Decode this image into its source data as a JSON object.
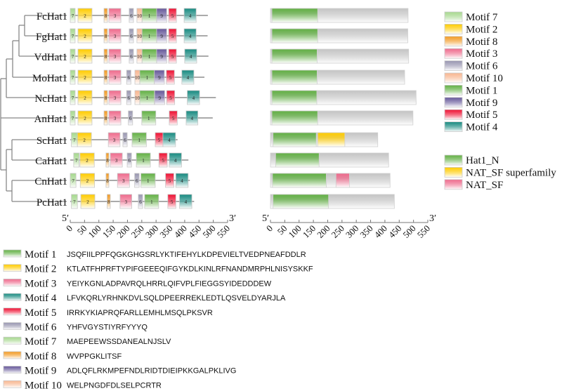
{
  "motifs": [
    {
      "id": "1",
      "label": "Motif 1",
      "color": "#62b044",
      "sequence": "JSQFIILPPFQGKGHGSRLYKTIFEHYLKDPEVIELTVEDPNEAFDDLR"
    },
    {
      "id": "2",
      "label": "Motif 2",
      "color": "#ffcc00",
      "sequence": "KTLATFHPRFTYPIFGEEEQIFGYKDLKINLRFNANDMRPHLNISYSKKF"
    },
    {
      "id": "3",
      "label": "Motif 3",
      "color": "#ee6a8c",
      "sequence": "YEIYKGNLADPAVRQLHRRLQIFVPLFIEGGSYIDEDDDEW"
    },
    {
      "id": "4",
      "label": "Motif 4",
      "color": "#178a80",
      "sequence": "LFVKQRLYRHNKDVLSQLDPEERREKLEDTLQSVELDYARJLA"
    },
    {
      "id": "5",
      "label": "Motif 5",
      "color": "#ee1133",
      "sequence": "IRRKYKIAPRQFARLLEMHLMSQLPKSVR"
    },
    {
      "id": "6",
      "label": "Motif 6",
      "color": "#9896b0",
      "sequence": "YHFVGYSTIYRFYYYQ"
    },
    {
      "id": "7",
      "label": "Motif 7",
      "color": "#a6d88e",
      "sequence": "MAEPEEWSSDANEALNJSLV"
    },
    {
      "id": "8",
      "label": "Motif 8",
      "color": "#f29a22",
      "sequence": "WVPPGKLITSF"
    },
    {
      "id": "9",
      "label": "Motif 9",
      "color": "#66589a",
      "sequence": "ADLQFLRKMPEFNDLRIDTDIEIPKKGALPKLIVG"
    },
    {
      "id": "10",
      "label": "Motif 10",
      "color": "#f8b690",
      "sequence": "WELPNGDFDLSELPCRTR"
    }
  ],
  "motif_legend_order": [
    "7",
    "2",
    "8",
    "3",
    "6",
    "10",
    "1",
    "9",
    "5",
    "4"
  ],
  "domains": [
    {
      "name": "Hat1_N",
      "color": "#62b044"
    },
    {
      "name": "NAT_SF superfamily",
      "color": "#ffcc00"
    },
    {
      "name": "NAT_SF",
      "color": "#ee6a8c"
    }
  ],
  "axis": {
    "five_prime": "5′",
    "three_prime": "3′",
    "ticks": [
      0,
      50,
      100,
      150,
      200,
      250,
      300,
      350,
      400,
      450,
      500,
      550
    ]
  },
  "tree": "((((((FcHat1,FgHat1),VdHat1),MoHat1),NcHat1),AnHat1,((ScHat1,CaHat1),(CnHat1,PcHat1)))",
  "genes": [
    {
      "name": "FcHat1",
      "length": 481,
      "motifs": [
        [
          "7",
          0,
          17
        ],
        [
          "2",
          27,
          76
        ],
        [
          "8",
          118,
          130
        ],
        [
          "3",
          135,
          177
        ],
        [
          "6",
          206,
          221
        ],
        [
          "10",
          233,
          251
        ],
        [
          "1",
          251,
          302
        ],
        [
          "9",
          302,
          337
        ],
        [
          "5",
          344,
          371
        ],
        [
          "4",
          398,
          440
        ]
      ],
      "domains": [
        [
          "Hat1_N",
          5,
          165
        ]
      ]
    },
    {
      "name": "FgHat1",
      "length": 480,
      "motifs": [
        [
          "7",
          0,
          17
        ],
        [
          "2",
          27,
          76
        ],
        [
          "8",
          118,
          130
        ],
        [
          "3",
          135,
          177
        ],
        [
          "6",
          206,
          221
        ],
        [
          "10",
          233,
          251
        ],
        [
          "1",
          251,
          302
        ],
        [
          "9",
          302,
          337
        ],
        [
          "5",
          344,
          371
        ],
        [
          "4",
          398,
          440
        ]
      ],
      "domains": [
        [
          "Hat1_N",
          5,
          165
        ]
      ]
    },
    {
      "name": "VdHat1",
      "length": 483,
      "motifs": [
        [
          "7",
          0,
          17
        ],
        [
          "2",
          27,
          76
        ],
        [
          "8",
          118,
          130
        ],
        [
          "3",
          135,
          177
        ],
        [
          "6",
          206,
          221
        ],
        [
          "10",
          233,
          251
        ],
        [
          "1",
          251,
          302
        ],
        [
          "9",
          302,
          337
        ],
        [
          "5",
          344,
          371
        ],
        [
          "4",
          400,
          442
        ]
      ],
      "domains": [
        [
          "Hat1_N",
          5,
          163
        ]
      ]
    },
    {
      "name": "MoHat1",
      "length": 469,
      "motifs": [
        [
          "7",
          0,
          17
        ],
        [
          "2",
          27,
          76
        ],
        [
          "8",
          118,
          130
        ],
        [
          "3",
          135,
          177
        ],
        [
          "6",
          197,
          212
        ],
        [
          "10",
          226,
          243
        ],
        [
          "1",
          243,
          294
        ],
        [
          "9",
          294,
          329
        ],
        [
          "5",
          336,
          364
        ],
        [
          "4",
          390,
          432
        ]
      ],
      "domains": [
        [
          "Hat1_N",
          5,
          163
        ]
      ]
    },
    {
      "name": "NcHat1",
      "length": 509,
      "motifs": [
        [
          "7",
          0,
          17
        ],
        [
          "2",
          27,
          76
        ],
        [
          "8",
          118,
          130
        ],
        [
          "3",
          135,
          177
        ],
        [
          "6",
          197,
          212
        ],
        [
          "10",
          226,
          243
        ],
        [
          "1",
          243,
          294
        ],
        [
          "9",
          295,
          330
        ],
        [
          "5",
          337,
          365
        ],
        [
          "4",
          409,
          452
        ]
      ],
      "domains": [
        [
          "Hat1_N",
          5,
          162
        ]
      ]
    },
    {
      "name": "AnHat1",
      "length": 498,
      "motifs": [
        [
          "7",
          0,
          17
        ],
        [
          "2",
          27,
          76
        ],
        [
          "8",
          118,
          130
        ],
        [
          "3",
          135,
          177
        ],
        [
          "6",
          203,
          218
        ],
        [
          "1",
          250,
          299
        ],
        [
          "5",
          346,
          374
        ],
        [
          "4",
          405,
          446
        ]
      ],
      "domains": [
        [
          "Hat1_N",
          5,
          165
        ]
      ]
    },
    {
      "name": "ScHat1",
      "length": 375,
      "motifs": [
        [
          "7",
          4,
          25
        ],
        [
          "2",
          25,
          74
        ],
        [
          "3",
          133,
          174
        ],
        [
          "6",
          184,
          199
        ],
        [
          "1",
          216,
          266
        ],
        [
          "5",
          297,
          324
        ],
        [
          "4",
          324,
          368
        ]
      ],
      "domains": [
        [
          "Hat1_N",
          9,
          160
        ],
        [
          "NAT_SF superfamily",
          165,
          260
        ]
      ]
    },
    {
      "name": "CaHat1",
      "length": 413,
      "motifs": [
        [
          "7",
          12,
          31
        ],
        [
          "2",
          34,
          84
        ],
        [
          "8",
          125,
          135
        ],
        [
          "3",
          140,
          182
        ],
        [
          "6",
          199,
          214
        ],
        [
          "1",
          231,
          280
        ],
        [
          "5",
          310,
          339
        ],
        [
          "4",
          346,
          389
        ]
      ],
      "domains": [
        [
          "Hat1_N",
          18,
          170
        ]
      ]
    },
    {
      "name": "CnHat1",
      "length": 418,
      "motifs": [
        [
          "7",
          0,
          20
        ],
        [
          "2",
          35,
          85
        ],
        [
          "8",
          125,
          135
        ],
        [
          "3",
          165,
          207
        ],
        [
          "6",
          225,
          241
        ],
        [
          "1",
          247,
          297
        ],
        [
          "5",
          333,
          362
        ],
        [
          "4",
          369,
          412
        ]
      ],
      "domains": [
        [
          "Hat1_N",
          7,
          195
        ],
        [
          "NAT_SF",
          229,
          276
        ]
      ]
    },
    {
      "name": "PcHat1",
      "length": 433,
      "motifs": [
        [
          "7",
          4,
          25
        ],
        [
          "2",
          37,
          86
        ],
        [
          "8",
          129,
          140
        ],
        [
          "3",
          174,
          215
        ],
        [
          "6",
          238,
          253
        ],
        [
          "1",
          260,
          309
        ],
        [
          "5",
          341,
          369
        ],
        [
          "4",
          382,
          425
        ]
      ],
      "domains": [
        [
          "Hat1_N",
          9,
          203
        ]
      ]
    }
  ]
}
